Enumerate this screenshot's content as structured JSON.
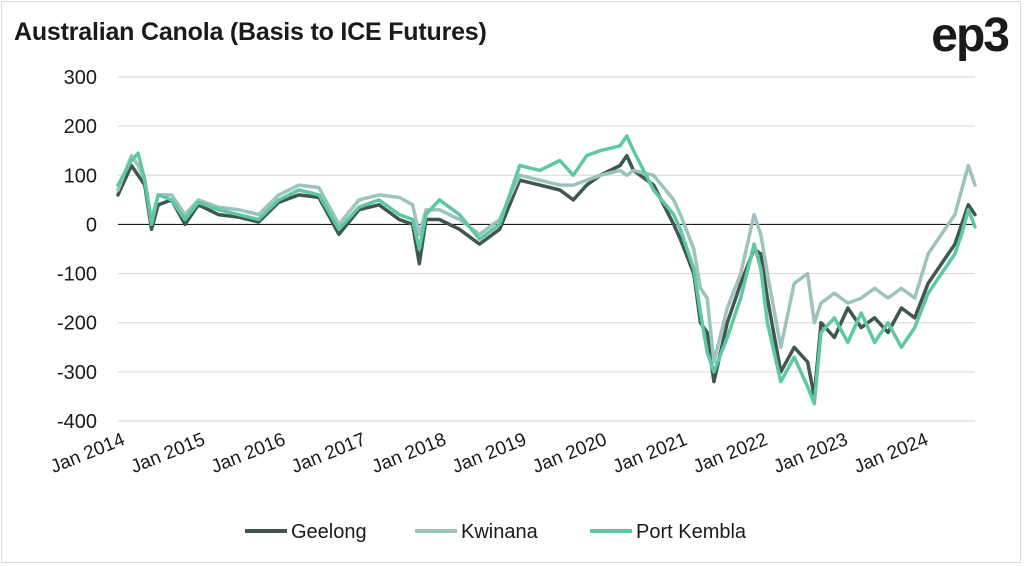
{
  "title": "Australian Canola (Basis to ICE Futures)",
  "logo": "ep3",
  "chart_data": {
    "type": "line",
    "ylim": [
      -400,
      300
    ],
    "yticks": [
      300,
      200,
      100,
      0,
      -100,
      -200,
      -300,
      -400
    ],
    "xlim": [
      "2014-01",
      "2024-09"
    ],
    "xticks": [
      "Jan 2014",
      "Jan 2015",
      "Jan 2016",
      "Jan 2017",
      "Jan 2018",
      "Jan 2019",
      "Jan 2020",
      "Jan 2021",
      "Jan 2022",
      "Jan 2023",
      "Jan 2024"
    ],
    "grid": true,
    "legend": "bottom",
    "series": [
      {
        "name": "Geelong",
        "color": "#3f5652",
        "points": [
          [
            "2014-01",
            60
          ],
          [
            "2014-03",
            120
          ],
          [
            "2014-04",
            100
          ],
          [
            "2014-05",
            80
          ],
          [
            "2014-06",
            -10
          ],
          [
            "2014-07",
            40
          ],
          [
            "2014-09",
            50
          ],
          [
            "2014-11",
            0
          ],
          [
            "2015-01",
            40
          ],
          [
            "2015-04",
            20
          ],
          [
            "2015-07",
            15
          ],
          [
            "2015-10",
            5
          ],
          [
            "2016-01",
            45
          ],
          [
            "2016-04",
            60
          ],
          [
            "2016-07",
            55
          ],
          [
            "2016-10",
            -20
          ],
          [
            "2017-01",
            30
          ],
          [
            "2017-04",
            40
          ],
          [
            "2017-07",
            10
          ],
          [
            "2017-09",
            0
          ],
          [
            "2017-10",
            -80
          ],
          [
            "2017-11",
            10
          ],
          [
            "2018-01",
            10
          ],
          [
            "2018-04",
            -10
          ],
          [
            "2018-07",
            -40
          ],
          [
            "2018-10",
            -10
          ],
          [
            "2019-01",
            90
          ],
          [
            "2019-04",
            80
          ],
          [
            "2019-07",
            70
          ],
          [
            "2019-09",
            50
          ],
          [
            "2019-11",
            80
          ],
          [
            "2020-01",
            100
          ],
          [
            "2020-04",
            120
          ],
          [
            "2020-05",
            140
          ],
          [
            "2020-06",
            110
          ],
          [
            "2020-09",
            80
          ],
          [
            "2020-12",
            0
          ],
          [
            "2021-01",
            -30
          ],
          [
            "2021-03",
            -100
          ],
          [
            "2021-04",
            -200
          ],
          [
            "2021-05",
            -220
          ],
          [
            "2021-06",
            -320
          ],
          [
            "2021-08",
            -200
          ],
          [
            "2021-10",
            -120
          ],
          [
            "2021-12",
            -50
          ],
          [
            "2022-01",
            -60
          ],
          [
            "2022-02",
            -150
          ],
          [
            "2022-04",
            -300
          ],
          [
            "2022-06",
            -250
          ],
          [
            "2022-08",
            -280
          ],
          [
            "2022-09",
            -350
          ],
          [
            "2022-10",
            -200
          ],
          [
            "2022-12",
            -230
          ],
          [
            "2023-02",
            -170
          ],
          [
            "2023-04",
            -210
          ],
          [
            "2023-06",
            -190
          ],
          [
            "2023-08",
            -220
          ],
          [
            "2023-10",
            -170
          ],
          [
            "2023-12",
            -190
          ],
          [
            "2024-02",
            -120
          ],
          [
            "2024-04",
            -80
          ],
          [
            "2024-06",
            -40
          ],
          [
            "2024-07",
            0
          ],
          [
            "2024-08",
            40
          ],
          [
            "2024-09",
            20
          ]
        ]
      },
      {
        "name": "Kwinana",
        "color": "#9cc3be",
        "points": [
          [
            "2014-01",
            70
          ],
          [
            "2014-03",
            140
          ],
          [
            "2014-04",
            120
          ],
          [
            "2014-05",
            90
          ],
          [
            "2014-06",
            10
          ],
          [
            "2014-07",
            60
          ],
          [
            "2014-09",
            60
          ],
          [
            "2014-11",
            20
          ],
          [
            "2015-01",
            50
          ],
          [
            "2015-04",
            35
          ],
          [
            "2015-07",
            30
          ],
          [
            "2015-10",
            20
          ],
          [
            "2016-01",
            60
          ],
          [
            "2016-04",
            80
          ],
          [
            "2016-07",
            75
          ],
          [
            "2016-10",
            0
          ],
          [
            "2017-01",
            50
          ],
          [
            "2017-04",
            60
          ],
          [
            "2017-07",
            55
          ],
          [
            "2017-09",
            40
          ],
          [
            "2017-10",
            -20
          ],
          [
            "2017-11",
            30
          ],
          [
            "2018-01",
            30
          ],
          [
            "2018-04",
            10
          ],
          [
            "2018-07",
            -20
          ],
          [
            "2018-10",
            10
          ],
          [
            "2019-01",
            100
          ],
          [
            "2019-04",
            90
          ],
          [
            "2019-07",
            80
          ],
          [
            "2019-09",
            80
          ],
          [
            "2019-11",
            90
          ],
          [
            "2020-01",
            100
          ],
          [
            "2020-04",
            110
          ],
          [
            "2020-05",
            100
          ],
          [
            "2020-06",
            110
          ],
          [
            "2020-09",
            100
          ],
          [
            "2020-12",
            50
          ],
          [
            "2021-01",
            20
          ],
          [
            "2021-03",
            -50
          ],
          [
            "2021-04",
            -130
          ],
          [
            "2021-05",
            -150
          ],
          [
            "2021-06",
            -280
          ],
          [
            "2021-08",
            -170
          ],
          [
            "2021-10",
            -100
          ],
          [
            "2021-12",
            20
          ],
          [
            "2022-01",
            -20
          ],
          [
            "2022-02",
            -100
          ],
          [
            "2022-04",
            -250
          ],
          [
            "2022-06",
            -120
          ],
          [
            "2022-08",
            -100
          ],
          [
            "2022-09",
            -200
          ],
          [
            "2022-10",
            -160
          ],
          [
            "2022-12",
            -140
          ],
          [
            "2023-02",
            -160
          ],
          [
            "2023-04",
            -150
          ],
          [
            "2023-06",
            -130
          ],
          [
            "2023-08",
            -150
          ],
          [
            "2023-10",
            -130
          ],
          [
            "2023-12",
            -150
          ],
          [
            "2024-02",
            -60
          ],
          [
            "2024-04",
            -20
          ],
          [
            "2024-06",
            20
          ],
          [
            "2024-07",
            70
          ],
          [
            "2024-08",
            120
          ],
          [
            "2024-09",
            80
          ]
        ]
      },
      {
        "name": "Port Kembla",
        "color": "#5ec8a3",
        "points": [
          [
            "2014-01",
            80
          ],
          [
            "2014-03",
            130
          ],
          [
            "2014-04",
            145
          ],
          [
            "2014-05",
            90
          ],
          [
            "2014-06",
            0
          ],
          [
            "2014-07",
            60
          ],
          [
            "2014-09",
            50
          ],
          [
            "2014-11",
            10
          ],
          [
            "2015-01",
            45
          ],
          [
            "2015-04",
            30
          ],
          [
            "2015-07",
            20
          ],
          [
            "2015-10",
            10
          ],
          [
            "2016-01",
            50
          ],
          [
            "2016-04",
            70
          ],
          [
            "2016-07",
            60
          ],
          [
            "2016-10",
            -10
          ],
          [
            "2017-01",
            35
          ],
          [
            "2017-04",
            50
          ],
          [
            "2017-07",
            20
          ],
          [
            "2017-09",
            10
          ],
          [
            "2017-10",
            -50
          ],
          [
            "2017-11",
            20
          ],
          [
            "2018-01",
            50
          ],
          [
            "2018-04",
            20
          ],
          [
            "2018-07",
            -30
          ],
          [
            "2018-10",
            0
          ],
          [
            "2019-01",
            120
          ],
          [
            "2019-04",
            110
          ],
          [
            "2019-07",
            130
          ],
          [
            "2019-09",
            100
          ],
          [
            "2019-11",
            140
          ],
          [
            "2020-01",
            150
          ],
          [
            "2020-04",
            160
          ],
          [
            "2020-05",
            180
          ],
          [
            "2020-06",
            150
          ],
          [
            "2020-09",
            70
          ],
          [
            "2020-12",
            20
          ],
          [
            "2021-01",
            -10
          ],
          [
            "2021-03",
            -90
          ],
          [
            "2021-04",
            -180
          ],
          [
            "2021-05",
            -260
          ],
          [
            "2021-06",
            -300
          ],
          [
            "2021-08",
            -230
          ],
          [
            "2021-10",
            -150
          ],
          [
            "2021-12",
            -40
          ],
          [
            "2022-01",
            -90
          ],
          [
            "2022-02",
            -200
          ],
          [
            "2022-04",
            -320
          ],
          [
            "2022-06",
            -270
          ],
          [
            "2022-08",
            -330
          ],
          [
            "2022-09",
            -365
          ],
          [
            "2022-10",
            -220
          ],
          [
            "2022-12",
            -190
          ],
          [
            "2023-02",
            -240
          ],
          [
            "2023-04",
            -180
          ],
          [
            "2023-06",
            -240
          ],
          [
            "2023-08",
            -200
          ],
          [
            "2023-10",
            -250
          ],
          [
            "2023-12",
            -210
          ],
          [
            "2024-02",
            -140
          ],
          [
            "2024-04",
            -100
          ],
          [
            "2024-06",
            -60
          ],
          [
            "2024-07",
            -20
          ],
          [
            "2024-08",
            30
          ],
          [
            "2024-09",
            -5
          ]
        ]
      }
    ]
  }
}
